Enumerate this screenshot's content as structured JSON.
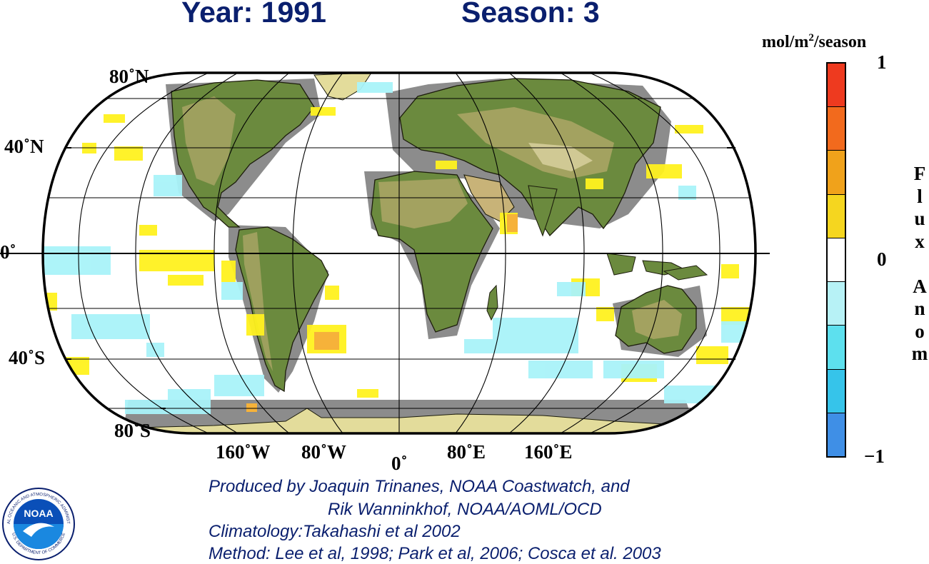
{
  "header": {
    "year_label": "Year: 1991",
    "season_label": "Season: 3"
  },
  "map": {
    "projection": "robinson-like (elliptical world)",
    "latitude_labels": [
      "80˚N",
      "40˚N",
      "0˚",
      "40˚S",
      "80˚S"
    ],
    "longitude_labels": [
      "160˚W",
      "80˚W",
      "0˚",
      "80˚E",
      "160˚E"
    ],
    "colors": {
      "ocean": "#ffffff",
      "land_green": "#5f7f3a",
      "land_tan": "#c9b27a",
      "land_mask_gray": "#8c8c8c",
      "ice": "#e8dd9c",
      "positive_anomaly": "#fff21f",
      "strong_positive": "#f6b23a",
      "negative_anomaly": "#a9f3f9",
      "graticule": "#000000"
    }
  },
  "colorbar": {
    "unit_label_main": "mol/m",
    "unit_label_sup": "2",
    "unit_label_tail": "/season",
    "max_label": "1",
    "mid_label": "0",
    "min_label": "−1",
    "vertical_label": [
      "F",
      "l",
      "u",
      "x",
      "",
      "A",
      "n",
      "o",
      "m"
    ],
    "segments": [
      "#ee3a1f",
      "#f26a1d",
      "#f0a21b",
      "#f5d61f",
      "#ffffff",
      "#b7f2f6",
      "#5de0ee",
      "#36c4ea",
      "#3f8fe6"
    ]
  },
  "credits": {
    "line1": "Produced by Joaquin Trinanes, NOAA Coastwatch, and",
    "line2": "Rik Wanninkhof, NOAA/AOML/OCD",
    "line3": "Climatology:Takahashi et al 2002",
    "line4": "Method: Lee et al, 1998; Park et al, 2006; Cosca et al. 2003"
  },
  "logo": {
    "text": "NOAA",
    "ring_top": "NATIONAL OCEANIC AND ATMOSPHERIC ADMINISTRATION",
    "ring_bottom": "U.S. DEPARTMENT OF COMMERCE"
  }
}
